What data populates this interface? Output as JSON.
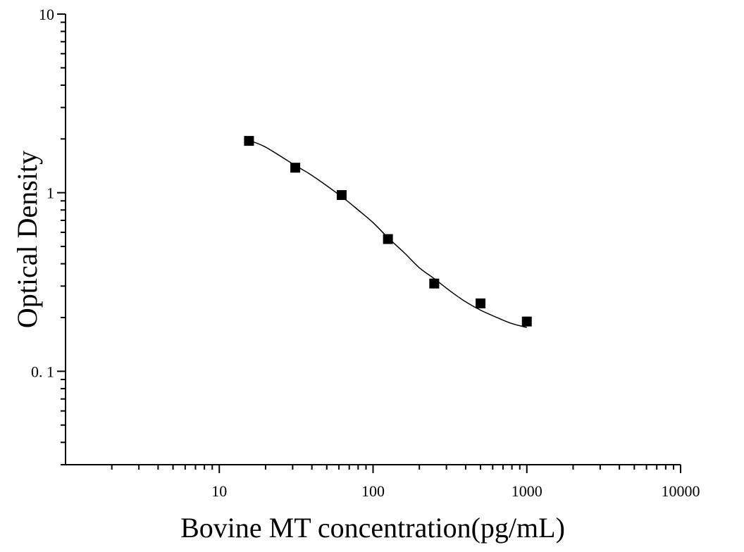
{
  "chart_data": {
    "type": "scatter",
    "title": "",
    "xlabel": "Bovine MT concentration(pg/mL)",
    "ylabel": "Optical Density",
    "x_scale": "log",
    "y_scale": "log",
    "xlim": [
      1,
      10000
    ],
    "ylim": [
      0.03,
      10
    ],
    "x_ticks": [
      {
        "value": 10,
        "label": "10"
      },
      {
        "value": 100,
        "label": "100"
      },
      {
        "value": 1000,
        "label": "1000"
      },
      {
        "value": 10000,
        "label": "10000"
      }
    ],
    "y_ticks": [
      {
        "value": 0.1,
        "label": "0. 1"
      },
      {
        "value": 1,
        "label": "1"
      },
      {
        "value": 10,
        "label": "10"
      }
    ],
    "grid": false,
    "legend": "none",
    "marker": "square",
    "marker_color": "#000000",
    "line_color": "#000000",
    "points": {
      "x": [
        15.6,
        31.2,
        62.5,
        125,
        250,
        500,
        1000
      ],
      "y": [
        1.95,
        1.38,
        0.97,
        0.55,
        0.31,
        0.24,
        0.19
      ]
    },
    "fit_curve": {
      "type": "4PL",
      "x": [
        15.6,
        20,
        31.2,
        40,
        62.5,
        80,
        100,
        125,
        160,
        200,
        250,
        320,
        400,
        500,
        640,
        800,
        1000
      ],
      "y": [
        1.96,
        1.8,
        1.42,
        1.25,
        0.95,
        0.8,
        0.68,
        0.56,
        0.46,
        0.38,
        0.33,
        0.28,
        0.245,
        0.22,
        0.2,
        0.185,
        0.176
      ]
    }
  }
}
